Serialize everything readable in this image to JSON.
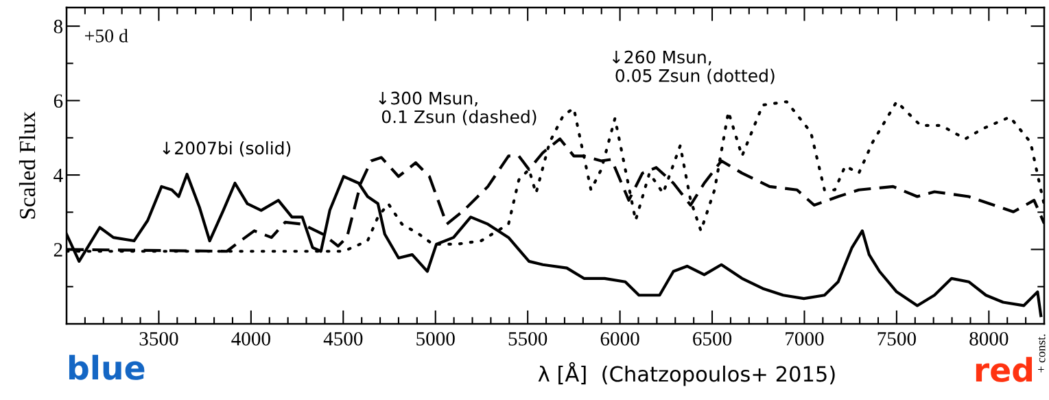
{
  "chart_data": {
    "type": "line",
    "xlabel": "λ [Å]  (Chatzopoulos+ 2015)",
    "ylabel": "Scaled Flux",
    "annotations": [
      "+50 d",
      "↓2007bi (solid)",
      "↓300 Msun,\n 0.1 Zsun (dashed)",
      "↓260 Msun,\n 0.05 Zsun (dotted)",
      "blue",
      "red",
      "+ const."
    ],
    "xlim": [
      3000,
      8300
    ],
    "ylim": [
      0,
      8.5
    ],
    "xticks": [
      3500,
      4000,
      4500,
      5000,
      5500,
      6000,
      6500,
      7000,
      7500,
      8000,
      {
        "value": 3100,
        "label": null
      },
      {
        "value": 3200,
        "label": null
      },
      {
        "value": 3300,
        "label": null
      },
      {
        "value": 3400,
        "label": null
      },
      {
        "value": 3600,
        "label": null
      },
      {
        "value": 3700,
        "label": null
      },
      {
        "value": 3800,
        "label": null
      },
      {
        "value": 3900,
        "label": null
      },
      {
        "value": 4100,
        "label": null
      },
      {
        "value": 4200,
        "label": null
      },
      {
        "value": 4300,
        "label": null
      },
      {
        "value": 4400,
        "label": null
      },
      {
        "value": 4600,
        "label": null
      },
      {
        "value": 4700,
        "label": null
      },
      {
        "value": 4800,
        "label": null
      },
      {
        "value": 4900,
        "label": null
      },
      {
        "value": 5100,
        "label": null
      },
      {
        "value": 5200,
        "label": null
      },
      {
        "value": 5300,
        "label": null
      },
      {
        "value": 5400,
        "label": null
      },
      {
        "value": 5600,
        "label": null
      },
      {
        "value": 5700,
        "label": null
      },
      {
        "value": 5800,
        "label": null
      },
      {
        "value": 5900,
        "label": null
      },
      {
        "value": 6100,
        "label": null
      },
      {
        "value": 6200,
        "label": null
      },
      {
        "value": 6300,
        "label": null
      },
      {
        "value": 6400,
        "label": null
      },
      {
        "value": 6600,
        "label": null
      },
      {
        "value": 6700,
        "label": null
      },
      {
        "value": 6800,
        "label": null
      },
      {
        "value": 6900,
        "label": null
      },
      {
        "value": 7100,
        "label": null
      },
      {
        "value": 7200,
        "label": null
      },
      {
        "value": 7300,
        "label": null
      },
      {
        "value": 7400,
        "label": null
      },
      {
        "value": 7600,
        "label": null
      },
      {
        "value": 7700,
        "label": null
      },
      {
        "value": 7800,
        "label": null
      },
      {
        "value": 7900,
        "label": null
      },
      {
        "value": 8100,
        "label": null
      },
      {
        "value": 8200,
        "label": null
      }
    ],
    "yticks": [
      2,
      4,
      6,
      8,
      {
        "value": 1,
        "label": null
      },
      {
        "value": 3,
        "label": null
      },
      {
        "value": 5,
        "label": null
      },
      {
        "value": 7,
        "label": null
      }
    ],
    "grid": false,
    "legend": false,
    "series": [
      {
        "color": "#000000",
        "line_style": "solid",
        "x": [
          3000,
          3068,
          3180,
          3254,
          3366,
          3440,
          3515,
          3571,
          3608,
          3653,
          3720,
          3776,
          3850,
          3913,
          3980,
          4055,
          4148,
          4222,
          4278,
          4334,
          4379,
          4427,
          4502,
          4584,
          4632,
          4688,
          4725,
          4800,
          4874,
          4956,
          5005,
          5098,
          5191,
          5284,
          5396,
          5507,
          5582,
          5712,
          5805,
          5917,
          6029,
          6103,
          6215,
          6290,
          6364,
          6457,
          6550,
          6662,
          6774,
          6885,
          6997,
          7109,
          7183,
          7258,
          7314,
          7351,
          7407,
          7500,
          7612,
          7705,
          7798,
          7891,
          7984,
          8077,
          8189,
          8264,
          8282
        ],
        "values": [
          2.41,
          1.68,
          2.59,
          2.32,
          2.23,
          2.78,
          3.69,
          3.6,
          3.42,
          4.02,
          3.14,
          2.23,
          3.05,
          3.78,
          3.23,
          3.05,
          3.32,
          2.87,
          2.87,
          2.05,
          1.95,
          3.05,
          3.96,
          3.78,
          3.42,
          3.23,
          2.41,
          1.77,
          1.86,
          1.41,
          2.14,
          2.32,
          2.87,
          2.68,
          2.32,
          1.68,
          1.59,
          1.5,
          1.22,
          1.22,
          1.13,
          0.77,
          0.77,
          1.41,
          1.55,
          1.32,
          1.59,
          1.22,
          0.95,
          0.77,
          0.68,
          0.77,
          1.13,
          2.05,
          2.5,
          1.86,
          1.41,
          0.86,
          0.49,
          0.77,
          1.22,
          1.13,
          0.77,
          0.58,
          0.49,
          0.86,
          0.22
        ]
      },
      {
        "color": "#000000",
        "line_style": "dashed",
        "x": [
          3000,
          3869,
          3943,
          4018,
          4111,
          4185,
          4278,
          4390,
          4472,
          4520,
          4595,
          4651,
          4707,
          4800,
          4893,
          4967,
          5061,
          5154,
          5284,
          5396,
          5452,
          5507,
          5582,
          5675,
          5750,
          5805,
          5899,
          5954,
          6048,
          6122,
          6197,
          6290,
          6383,
          6457,
          6550,
          6662,
          6811,
          6960,
          7053,
          7183,
          7295,
          7481,
          7612,
          7705,
          7891,
          8133,
          8245,
          8300
        ],
        "values": [
          2.0,
          1.95,
          2.23,
          2.5,
          2.32,
          2.73,
          2.68,
          2.41,
          2.09,
          2.32,
          3.78,
          4.38,
          4.47,
          3.96,
          4.33,
          3.96,
          2.68,
          3.05,
          3.69,
          4.51,
          4.51,
          4.15,
          4.6,
          4.97,
          4.51,
          4.51,
          4.38,
          4.42,
          3.32,
          4.05,
          4.2,
          3.78,
          3.19,
          3.78,
          4.38,
          4.05,
          3.69,
          3.6,
          3.19,
          3.42,
          3.6,
          3.69,
          3.42,
          3.55,
          3.42,
          3.01,
          3.32,
          2.7
        ]
      },
      {
        "color": "#000000",
        "line_style": "dotted",
        "x": [
          3000,
          4502,
          4632,
          4688,
          4744,
          4818,
          4911,
          4986,
          5116,
          5247,
          5396,
          5452,
          5507,
          5545,
          5619,
          5694,
          5750,
          5843,
          5899,
          5973,
          6011,
          6085,
          6160,
          6234,
          6327,
          6383,
          6439,
          6513,
          6588,
          6662,
          6774,
          6904,
          7035,
          7109,
          7165,
          7221,
          7295,
          7370,
          7500,
          7630,
          7742,
          7872,
          7965,
          8114,
          8226,
          8282,
          8300
        ],
        "values": [
          1.95,
          1.95,
          2.23,
          2.87,
          3.23,
          2.68,
          2.41,
          2.14,
          2.14,
          2.23,
          2.68,
          3.87,
          4.15,
          3.51,
          4.88,
          5.61,
          5.79,
          3.6,
          4.15,
          5.52,
          4.6,
          2.78,
          4.05,
          3.51,
          4.79,
          3.32,
          2.5,
          3.6,
          5.7,
          4.51,
          5.88,
          5.97,
          5.15,
          3.6,
          3.6,
          4.24,
          4.05,
          4.88,
          5.97,
          5.33,
          5.33,
          4.97,
          5.24,
          5.56,
          4.88,
          3.6,
          3.2
        ]
      }
    ]
  }
}
